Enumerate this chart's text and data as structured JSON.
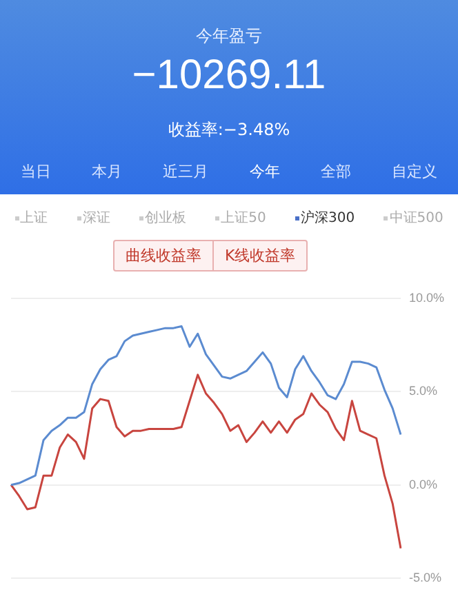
{
  "chart_data": {
    "type": "line",
    "title": "今年盈亏",
    "subtitle": "−10269.11",
    "annotations": [
      "收益率:−3.48%",
      "当日",
      "本月",
      "近三月",
      "今年",
      "全部",
      "自定义",
      "上证",
      "深证",
      "创业板",
      "上证50",
      "沪深300",
      "中证500",
      "曲线收益率",
      "K线收益率"
    ],
    "categories": [
      null,
      null,
      null,
      null,
      null,
      null,
      null,
      null,
      null,
      null,
      null,
      null,
      null,
      null,
      null,
      null,
      null,
      null,
      null,
      null,
      null,
      null,
      null,
      null,
      null,
      null,
      null,
      null,
      null,
      null,
      null,
      null,
      null,
      null,
      null,
      null,
      null,
      null,
      null,
      null,
      null,
      null,
      null,
      null,
      null,
      null,
      null,
      null,
      null
    ],
    "series": [
      {
        "color": "#5b8bd0",
        "values": [
          0.0,
          0.1,
          0.3,
          0.5,
          2.4,
          2.9,
          3.2,
          3.6,
          3.6,
          3.9,
          5.4,
          6.2,
          6.7,
          6.9,
          7.7,
          8.0,
          8.1,
          8.2,
          8.3,
          8.4,
          8.4,
          8.5,
          7.4,
          8.1,
          7.0,
          6.4,
          5.8,
          5.7,
          5.9,
          6.1,
          6.6,
          7.1,
          6.5,
          5.2,
          4.7,
          6.2,
          6.9,
          6.1,
          5.5,
          4.8,
          4.6,
          5.4,
          6.6,
          6.6,
          6.5,
          6.3,
          5.1,
          4.1,
          2.7
        ]
      },
      {
        "color": "#c8453f",
        "values": [
          0.0,
          -0.6,
          -1.3,
          -1.2,
          0.5,
          0.5,
          2.0,
          2.7,
          2.3,
          1.4,
          4.1,
          4.6,
          4.5,
          3.1,
          2.6,
          2.9,
          2.9,
          3.0,
          3.0,
          3.0,
          3.0,
          3.1,
          4.5,
          5.9,
          4.9,
          4.4,
          3.8,
          2.9,
          3.2,
          2.3,
          2.8,
          3.4,
          2.8,
          3.4,
          2.8,
          3.5,
          3.8,
          4.9,
          4.3,
          3.9,
          3.0,
          2.4,
          4.5,
          2.9,
          2.7,
          2.5,
          0.5,
          -1.0,
          -3.4
        ]
      }
    ],
    "ylim": [
      -5,
      10
    ],
    "yticks": [
      {
        "value": 10,
        "label": "10.0%"
      },
      {
        "value": 5,
        "label": "5.0%"
      },
      {
        "value": 0,
        "label": "0.0%"
      },
      {
        "value": -5,
        "label": "-5.0%"
      }
    ],
    "tick_labels": "y",
    "grid": "y",
    "legend": false,
    "marker": "none",
    "line_style": "solid"
  }
}
